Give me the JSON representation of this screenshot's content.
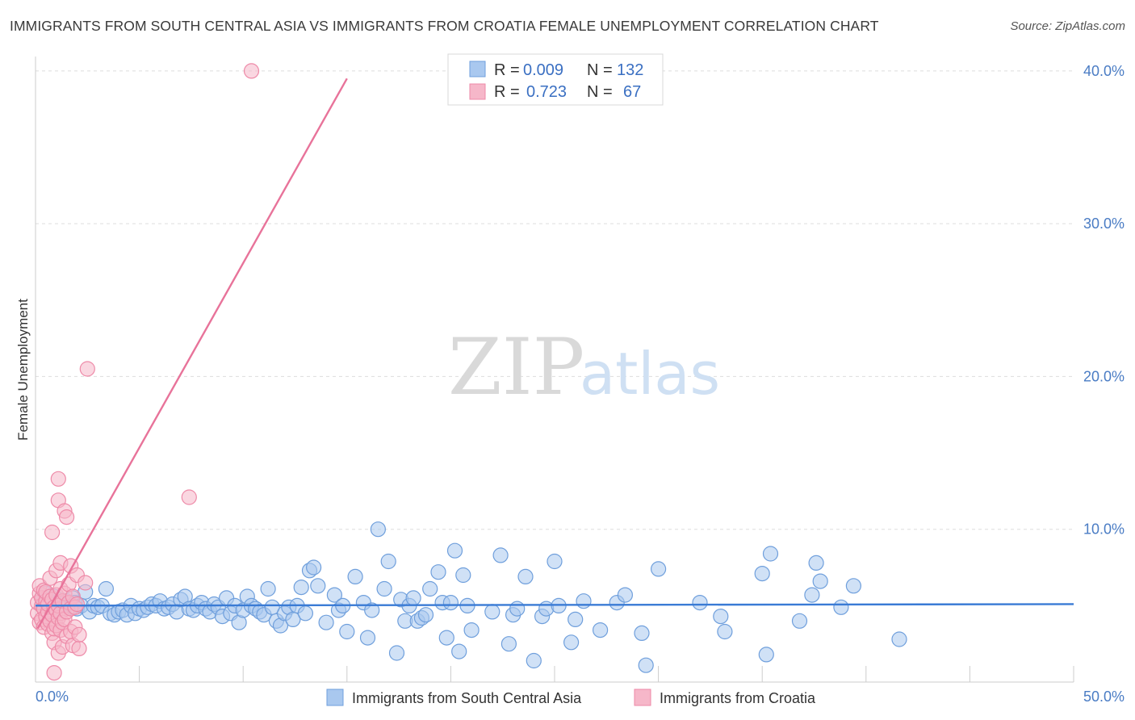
{
  "title": "IMMIGRANTS FROM SOUTH CENTRAL ASIA VS IMMIGRANTS FROM CROATIA FEMALE UNEMPLOYMENT CORRELATION CHART",
  "source": "Source: ZipAtlas.com",
  "watermark": {
    "zip": "ZIP",
    "atlas": "atlas"
  },
  "colors": {
    "blue_fill": "#a9c8ef",
    "blue_stroke": "#6f9fdc",
    "blue_line": "#3a7bd5",
    "pink_fill": "#f6b7c9",
    "pink_stroke": "#ee8aa8",
    "pink_line": "#e8739a",
    "grid": "#dddddd",
    "tick": "#4a7cc4"
  },
  "legend": {
    "rows": [
      {
        "r_label": "R =",
        "r_value": "0.009",
        "n_label": "N =",
        "n_value": "132"
      },
      {
        "r_label": "R =",
        "r_value": "0.723",
        "n_label": "N =",
        "n_value": "67"
      }
    ]
  },
  "chart_data": {
    "type": "scatter",
    "title": "IMMIGRANTS FROM SOUTH CENTRAL ASIA VS IMMIGRANTS FROM CROATIA FEMALE UNEMPLOYMENT CORRELATION CHART",
    "xlabel": "",
    "ylabel": "Female Unemployment",
    "xlim": [
      0,
      50
    ],
    "ylim": [
      0,
      42
    ],
    "x_ticks": [
      "0.0%",
      "50.0%"
    ],
    "y_ticks": [
      {
        "value": 10,
        "label": "10.0%"
      },
      {
        "value": 20,
        "label": "20.0%"
      },
      {
        "value": 30,
        "label": "30.0%"
      },
      {
        "value": 40,
        "label": "40.0%"
      }
    ],
    "series": [
      {
        "name": "Immigrants from South Central Asia",
        "color": "#6f9fdc",
        "r": 0.009,
        "n": 132,
        "trend": {
          "x": [
            0,
            50
          ],
          "y": [
            5.0,
            5.1
          ]
        },
        "points": [
          [
            0.3,
            5.5
          ],
          [
            0.4,
            5.1
          ],
          [
            0.5,
            5.8
          ],
          [
            0.6,
            4.9
          ],
          [
            0.7,
            5.3
          ],
          [
            0.8,
            5.0
          ],
          [
            0.9,
            5.6
          ],
          [
            1.0,
            4.8
          ],
          [
            1.1,
            5.2
          ],
          [
            1.2,
            5.4
          ],
          [
            1.3,
            4.7
          ],
          [
            1.4,
            5.0
          ],
          [
            1.5,
            5.3
          ],
          [
            1.6,
            5.1
          ],
          [
            1.7,
            4.9
          ],
          [
            1.8,
            5.5
          ],
          [
            1.9,
            5.2
          ],
          [
            2.0,
            4.8
          ],
          [
            2.2,
            5.0
          ],
          [
            2.4,
            5.9
          ],
          [
            2.6,
            4.6
          ],
          [
            2.8,
            5.0
          ],
          [
            3.0,
            4.9
          ],
          [
            3.2,
            5.0
          ],
          [
            3.4,
            6.1
          ],
          [
            3.6,
            4.5
          ],
          [
            3.8,
            4.4
          ],
          [
            4.0,
            4.6
          ],
          [
            4.2,
            4.7
          ],
          [
            4.4,
            4.4
          ],
          [
            4.6,
            5.0
          ],
          [
            4.8,
            4.5
          ],
          [
            5.0,
            4.8
          ],
          [
            5.2,
            4.7
          ],
          [
            5.4,
            4.9
          ],
          [
            5.6,
            5.1
          ],
          [
            5.8,
            5.0
          ],
          [
            6.0,
            5.3
          ],
          [
            6.2,
            4.8
          ],
          [
            6.4,
            4.9
          ],
          [
            6.6,
            5.1
          ],
          [
            6.8,
            4.6
          ],
          [
            7.0,
            5.4
          ],
          [
            7.2,
            5.6
          ],
          [
            7.4,
            4.8
          ],
          [
            7.6,
            4.7
          ],
          [
            7.8,
            5.0
          ],
          [
            8.0,
            5.2
          ],
          [
            8.2,
            4.8
          ],
          [
            8.4,
            4.6
          ],
          [
            8.6,
            5.1
          ],
          [
            8.8,
            4.9
          ],
          [
            9.0,
            4.3
          ],
          [
            9.2,
            5.5
          ],
          [
            9.4,
            4.5
          ],
          [
            9.6,
            5.0
          ],
          [
            9.8,
            3.9
          ],
          [
            10.0,
            4.7
          ],
          [
            10.2,
            5.6
          ],
          [
            10.4,
            5.0
          ],
          [
            10.6,
            4.8
          ],
          [
            10.8,
            4.6
          ],
          [
            11.0,
            4.4
          ],
          [
            11.2,
            6.1
          ],
          [
            11.4,
            4.9
          ],
          [
            11.6,
            4.0
          ],
          [
            11.8,
            3.7
          ],
          [
            12.0,
            4.5
          ],
          [
            12.2,
            4.9
          ],
          [
            12.4,
            4.1
          ],
          [
            12.6,
            5.0
          ],
          [
            12.8,
            6.2
          ],
          [
            13.0,
            4.5
          ],
          [
            13.2,
            7.3
          ],
          [
            13.4,
            7.5
          ],
          [
            13.6,
            6.3
          ],
          [
            14.0,
            3.9
          ],
          [
            14.4,
            5.7
          ],
          [
            14.6,
            4.7
          ],
          [
            14.8,
            5.0
          ],
          [
            15.0,
            3.3
          ],
          [
            15.4,
            6.9
          ],
          [
            15.8,
            5.2
          ],
          [
            16.0,
            2.9
          ],
          [
            16.2,
            4.7
          ],
          [
            16.5,
            10.0
          ],
          [
            16.8,
            6.1
          ],
          [
            17.0,
            7.9
          ],
          [
            17.4,
            1.9
          ],
          [
            17.6,
            5.4
          ],
          [
            17.8,
            4.0
          ],
          [
            18.0,
            5.0
          ],
          [
            18.2,
            5.5
          ],
          [
            18.4,
            4.0
          ],
          [
            18.6,
            4.2
          ],
          [
            18.8,
            4.4
          ],
          [
            19.0,
            6.1
          ],
          [
            19.4,
            7.2
          ],
          [
            19.6,
            5.2
          ],
          [
            19.8,
            2.9
          ],
          [
            20.0,
            5.2
          ],
          [
            20.2,
            8.6
          ],
          [
            20.4,
            2.0
          ],
          [
            20.6,
            7.0
          ],
          [
            20.8,
            5.0
          ],
          [
            21.0,
            3.4
          ],
          [
            22.0,
            4.6
          ],
          [
            22.4,
            8.3
          ],
          [
            22.8,
            2.5
          ],
          [
            23.0,
            4.4
          ],
          [
            23.2,
            4.8
          ],
          [
            23.6,
            6.9
          ],
          [
            24.0,
            1.4
          ],
          [
            24.4,
            4.3
          ],
          [
            24.6,
            4.8
          ],
          [
            25.0,
            7.9
          ],
          [
            25.2,
            5.0
          ],
          [
            25.8,
            2.6
          ],
          [
            26.0,
            4.1
          ],
          [
            26.4,
            5.3
          ],
          [
            27.2,
            3.4
          ],
          [
            28.0,
            5.2
          ],
          [
            28.4,
            5.7
          ],
          [
            29.2,
            3.2
          ],
          [
            29.4,
            1.1
          ],
          [
            30.0,
            7.4
          ],
          [
            32.0,
            5.2
          ],
          [
            33.0,
            4.3
          ],
          [
            33.2,
            3.3
          ],
          [
            35.0,
            7.1
          ],
          [
            35.4,
            8.4
          ],
          [
            35.2,
            1.8
          ],
          [
            36.8,
            4.0
          ],
          [
            37.4,
            5.7
          ],
          [
            37.6,
            7.8
          ],
          [
            37.8,
            6.6
          ],
          [
            38.8,
            4.9
          ],
          [
            39.4,
            6.3
          ],
          [
            41.6,
            2.8
          ]
        ]
      },
      {
        "name": "Immigrants from Croatia",
        "color": "#ee8aa8",
        "r": 0.723,
        "n": 67,
        "trend": {
          "x": [
            0.1,
            15.0
          ],
          "y": [
            3.5,
            39.5
          ]
        },
        "points": [
          [
            0.1,
            4.5
          ],
          [
            0.1,
            5.2
          ],
          [
            0.2,
            3.9
          ],
          [
            0.2,
            5.8
          ],
          [
            0.2,
            6.3
          ],
          [
            0.3,
            4.1
          ],
          [
            0.3,
            5.0
          ],
          [
            0.3,
            5.5
          ],
          [
            0.4,
            3.6
          ],
          [
            0.4,
            4.8
          ],
          [
            0.4,
            6.0
          ],
          [
            0.5,
            4.3
          ],
          [
            0.5,
            5.3
          ],
          [
            0.5,
            5.9
          ],
          [
            0.6,
            3.8
          ],
          [
            0.6,
            4.6
          ],
          [
            0.6,
            5.1
          ],
          [
            0.7,
            4.0
          ],
          [
            0.7,
            5.6
          ],
          [
            0.7,
            6.8
          ],
          [
            0.8,
            3.2
          ],
          [
            0.8,
            4.4
          ],
          [
            0.8,
            5.4
          ],
          [
            0.8,
            9.8
          ],
          [
            0.9,
            0.6
          ],
          [
            0.9,
            2.6
          ],
          [
            0.9,
            3.5
          ],
          [
            0.9,
            4.9
          ],
          [
            1.0,
            3.7
          ],
          [
            1.0,
            4.7
          ],
          [
            1.0,
            5.7
          ],
          [
            1.0,
            7.3
          ],
          [
            1.1,
            1.9
          ],
          [
            1.1,
            4.2
          ],
          [
            1.1,
            5.0
          ],
          [
            1.1,
            13.3
          ],
          [
            1.1,
            11.9
          ],
          [
            1.2,
            3.4
          ],
          [
            1.2,
            4.5
          ],
          [
            1.2,
            6.1
          ],
          [
            1.2,
            7.8
          ],
          [
            1.3,
            2.3
          ],
          [
            1.3,
            3.9
          ],
          [
            1.3,
            5.3
          ],
          [
            1.4,
            4.1
          ],
          [
            1.4,
            5.8
          ],
          [
            1.4,
            11.2
          ],
          [
            1.5,
            3.0
          ],
          [
            1.5,
            4.6
          ],
          [
            1.5,
            10.8
          ],
          [
            1.6,
            5.2
          ],
          [
            1.6,
            6.4
          ],
          [
            1.7,
            3.3
          ],
          [
            1.7,
            4.8
          ],
          [
            1.7,
            7.6
          ],
          [
            1.8,
            2.4
          ],
          [
            1.8,
            5.6
          ],
          [
            1.9,
            3.6
          ],
          [
            1.9,
            4.9
          ],
          [
            2.0,
            5.1
          ],
          [
            2.0,
            7.0
          ],
          [
            2.1,
            2.2
          ],
          [
            2.1,
            3.1
          ],
          [
            2.4,
            6.5
          ],
          [
            2.5,
            20.5
          ],
          [
            7.4,
            12.1
          ],
          [
            10.4,
            40.0
          ]
        ]
      }
    ]
  },
  "bottom_legend": {
    "items": [
      {
        "label": "Immigrants from South Central Asia"
      },
      {
        "label": "Immigrants from Croatia"
      }
    ]
  }
}
